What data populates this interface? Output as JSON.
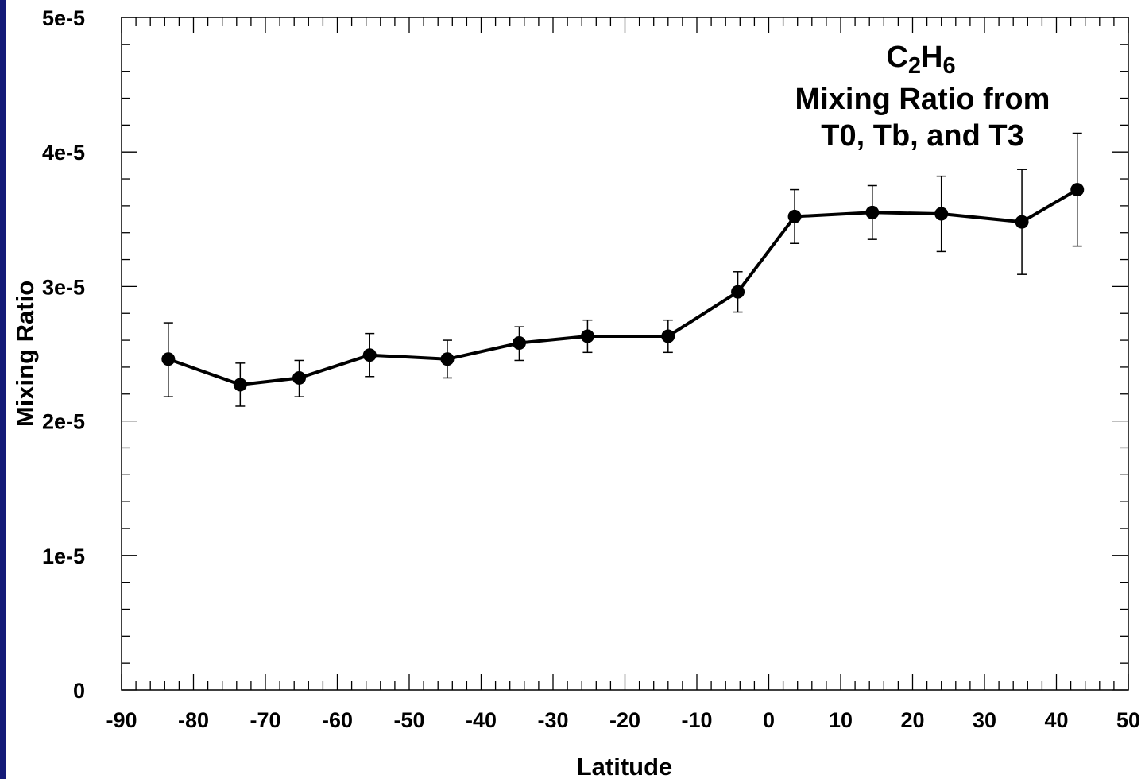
{
  "chart_data": {
    "type": "line",
    "xlabel": "Latitude",
    "ylabel": "Mixing Ratio",
    "xlim": [
      -90,
      50
    ],
    "ylim": [
      0,
      5e-05
    ],
    "x_ticks": [
      "-90",
      "-80",
      "-70",
      "-60",
      "-50",
      "-40",
      "-30",
      "-20",
      "-10",
      "0",
      "10",
      "20",
      "30",
      "40",
      "50"
    ],
    "y_ticks": [
      "0",
      "1e-5",
      "2e-5",
      "3e-5",
      "4e-5",
      "5e-5"
    ],
    "annotation": {
      "molecule": {
        "c": "C",
        "c_sub": "2",
        "h": "H",
        "h_sub": "6"
      },
      "line1": "Mixing Ratio from",
      "line2": "T0, Tb, and T3"
    },
    "grid": false,
    "series": [
      {
        "color": "#000000",
        "marker": "circle",
        "points": [
          {
            "x": -83.5,
            "y": 2.46e-05,
            "err_low": 2.18e-05,
            "err_high": 2.73e-05
          },
          {
            "x": -73.5,
            "y": 2.27e-05,
            "err_low": 2.11e-05,
            "err_high": 2.43e-05
          },
          {
            "x": -65.3,
            "y": 2.32e-05,
            "err_low": 2.18e-05,
            "err_high": 2.45e-05
          },
          {
            "x": -55.5,
            "y": 2.49e-05,
            "err_low": 2.33e-05,
            "err_high": 2.65e-05
          },
          {
            "x": -44.7,
            "y": 2.46e-05,
            "err_low": 2.32e-05,
            "err_high": 2.6e-05
          },
          {
            "x": -34.7,
            "y": 2.58e-05,
            "err_low": 2.45e-05,
            "err_high": 2.7e-05
          },
          {
            "x": -25.2,
            "y": 2.63e-05,
            "err_low": 2.51e-05,
            "err_high": 2.75e-05
          },
          {
            "x": -14.0,
            "y": 2.63e-05,
            "err_low": 2.51e-05,
            "err_high": 2.75e-05
          },
          {
            "x": -4.3,
            "y": 2.96e-05,
            "err_low": 2.81e-05,
            "err_high": 3.11e-05
          },
          {
            "x": 3.6,
            "y": 3.52e-05,
            "err_low": 3.32e-05,
            "err_high": 3.72e-05
          },
          {
            "x": 14.4,
            "y": 3.55e-05,
            "err_low": 3.35e-05,
            "err_high": 3.75e-05
          },
          {
            "x": 24.0,
            "y": 3.54e-05,
            "err_low": 3.26e-05,
            "err_high": 3.82e-05
          },
          {
            "x": 35.2,
            "y": 3.48e-05,
            "err_low": 3.09e-05,
            "err_high": 3.87e-05
          },
          {
            "x": 42.9,
            "y": 3.72e-05,
            "err_low": 3.3e-05,
            "err_high": 4.14e-05
          }
        ]
      }
    ]
  }
}
